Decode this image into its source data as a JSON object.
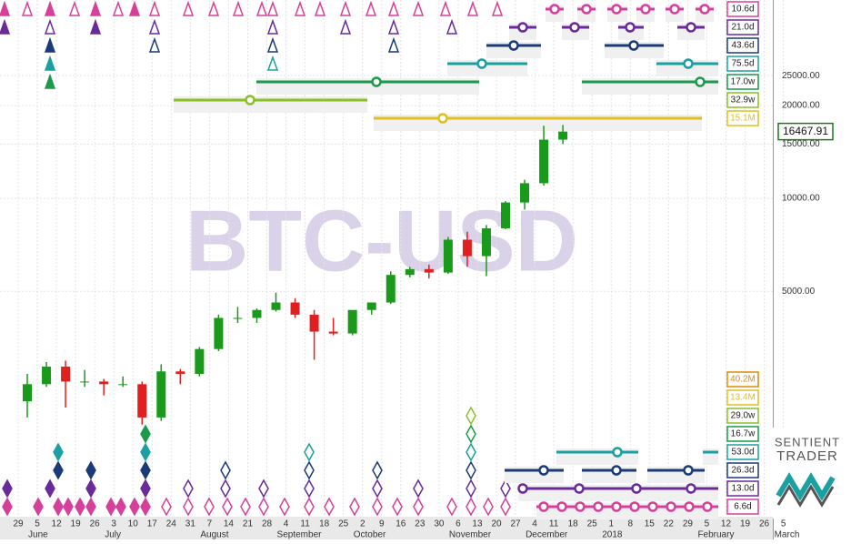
{
  "chart_data": {
    "type": "candlestick",
    "watermark": "BTC-USD",
    "categories": [
      "29",
      "5",
      "12",
      "19",
      "26",
      "3",
      "10",
      "17",
      "24",
      "31",
      "7",
      "14",
      "21",
      "28",
      "4",
      "11",
      "18",
      "25",
      "2",
      "9",
      "16",
      "23",
      "30",
      "6",
      "13",
      "20",
      "27",
      "4",
      "11",
      "18",
      "25",
      "1",
      "8",
      "15",
      "22",
      "29",
      "5",
      "12",
      "19",
      "26",
      "5"
    ],
    "months": [
      {
        "label": "June",
        "index": 1
      },
      {
        "label": "July",
        "index": 5
      },
      {
        "label": "August",
        "index": 10
      },
      {
        "label": "September",
        "index": 14
      },
      {
        "label": "October",
        "index": 18
      },
      {
        "label": "November",
        "index": 23
      },
      {
        "label": "December",
        "index": 27
      },
      {
        "label": "2018",
        "index": 31
      },
      {
        "label": "February",
        "index": 36
      },
      {
        "label": "March",
        "index": 40
      }
    ],
    "open": [
      2200,
      2500,
      2850,
      2550,
      2550,
      2500,
      2500,
      1950,
      2750,
      2700,
      3250,
      4100,
      4100,
      4350,
      4600,
      4200,
      3700,
      3650,
      4350,
      4600,
      5650,
      5900,
      5750,
      7350,
      6500,
      8000,
      9700,
      11200,
      15500,
      null,
      null,
      null,
      null,
      null,
      null,
      null,
      null,
      null,
      null,
      null,
      null
    ],
    "high": [
      2700,
      2950,
      2980,
      2780,
      2600,
      2650,
      2550,
      2900,
      2800,
      3300,
      4200,
      4450,
      4400,
      4950,
      4750,
      4350,
      4100,
      4300,
      4600,
      5800,
      6000,
      6100,
      7500,
      7800,
      8200,
      9800,
      11500,
      17200,
      17300,
      null,
      null,
      null,
      null,
      null,
      null,
      null,
      null,
      null,
      null,
      null,
      null
    ],
    "low": [
      1950,
      2450,
      2100,
      2450,
      2300,
      2450,
      1850,
      1900,
      2500,
      2650,
      3200,
      3950,
      3950,
      4300,
      4100,
      3000,
      3600,
      3600,
      4200,
      4550,
      5550,
      5500,
      5700,
      6000,
      5600,
      7950,
      9200,
      11000,
      15000,
      null,
      null,
      null,
      null,
      null,
      null,
      null,
      null,
      null,
      null,
      null,
      null
    ],
    "close": [
      2500,
      2850,
      2550,
      2550,
      2500,
      2500,
      1950,
      2750,
      2700,
      3250,
      4100,
      4100,
      4350,
      4600,
      4200,
      3700,
      3650,
      4350,
      4600,
      5650,
      5900,
      5750,
      7350,
      6500,
      8000,
      9700,
      11200,
      15500,
      16467.91,
      null,
      null,
      null,
      null,
      null,
      null,
      null,
      null,
      null,
      null,
      null,
      null
    ],
    "last_price": 16467.91,
    "up_color": "#1a9a1a",
    "down_color": "#e02020",
    "log_scale": true,
    "grid": true,
    "ylim": [
      930,
      43950
    ],
    "yticks": [
      {
        "value": 5000,
        "label": "5000.00"
      },
      {
        "value": 10000,
        "label": "10000.00"
      },
      {
        "value": 15000,
        "label": "15000.00"
      },
      {
        "value": 20000,
        "label": "20000.00"
      },
      {
        "value": 25000,
        "label": "25000.00"
      }
    ],
    "cycles_top": [
      {
        "label": "10.6d",
        "color": "#d6409a"
      },
      {
        "label": "21.0d",
        "color": "#6a2a9a"
      },
      {
        "label": "43.6d",
        "color": "#1a3a7a"
      },
      {
        "label": "75.5d",
        "color": "#1aa0a0"
      },
      {
        "label": "17.0w",
        "color": "#1a9a4a"
      },
      {
        "label": "32.9w",
        "color": "#8cbf26"
      },
      {
        "label": "15.1M",
        "color": "#e0c020"
      }
    ],
    "cycles_bottom": [
      {
        "label": "40.2M",
        "color": "#e08a00"
      },
      {
        "label": "13.4M",
        "color": "#e0c020"
      },
      {
        "label": "29.0w",
        "color": "#8cbf26"
      },
      {
        "label": "16.7w",
        "color": "#1a9a4a"
      },
      {
        "label": "53.0d",
        "color": "#1aa0a0"
      },
      {
        "label": "26.3d",
        "color": "#1a3a7a"
      },
      {
        "label": "13.0d",
        "color": "#6a2a9a"
      },
      {
        "label": "6.6d",
        "color": "#d6409a"
      }
    ],
    "logo": [
      "SENTIENT",
      "TRADER"
    ]
  }
}
